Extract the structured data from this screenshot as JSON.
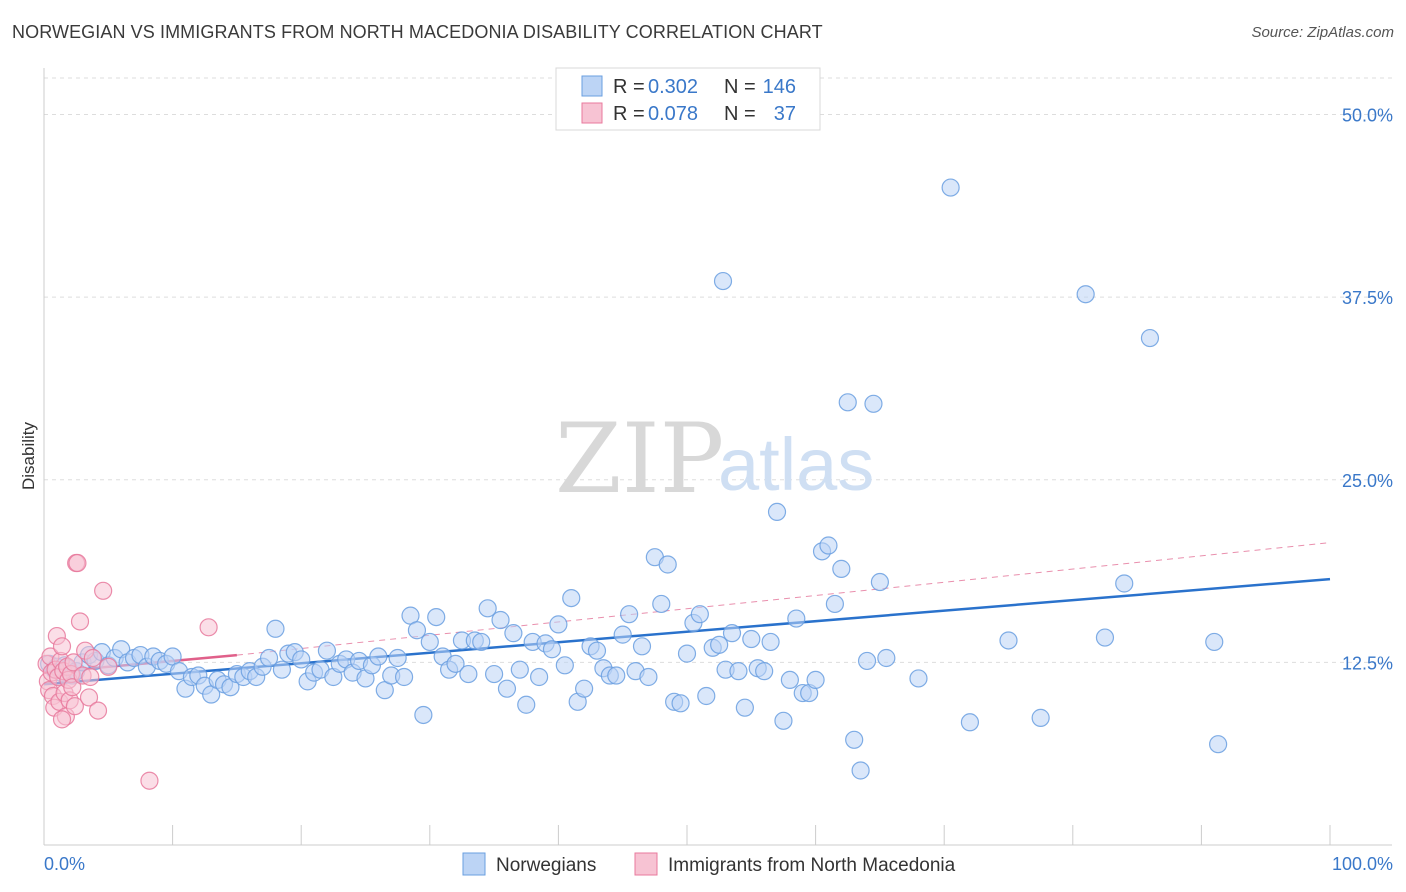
{
  "title": "NORWEGIAN VS IMMIGRANTS FROM NORTH MACEDONIA DISABILITY CORRELATION CHART",
  "source": "Source: ZipAtlas.com",
  "watermark": {
    "zip": "ZIP",
    "atlas": "atlas"
  },
  "chart_data": {
    "type": "scatter",
    "title": "NORWEGIAN VS IMMIGRANTS FROM NORTH MACEDONIA DISABILITY CORRELATION CHART",
    "xlabel": "",
    "ylabel": "Disability",
    "xlim": [
      0,
      100
    ],
    "ylim": [
      0,
      52.5
    ],
    "x_tick_labels": {
      "min": "0.0%",
      "max": "100.0%"
    },
    "y_ticks": [
      {
        "value": 12.5,
        "label": "12.5%"
      },
      {
        "value": 25.0,
        "label": "25.0%"
      },
      {
        "value": 37.5,
        "label": "37.5%"
      },
      {
        "value": 50.0,
        "label": "50.0%"
      }
    ],
    "legend": [
      {
        "r_label": "R =",
        "r_value": "0.302",
        "n_label": "N =",
        "n_value": "146"
      },
      {
        "r_label": "R =",
        "r_value": "0.078",
        "n_label": "N =",
        "n_value": "37"
      }
    ],
    "colors": {
      "blue": "#6a9fe0",
      "blue_fill": "#bcd4f5",
      "blue_line": "#2a72cc",
      "pink": "#e8799c",
      "pink_fill": "#f7c3d3",
      "pink_line": "#e0608a"
    },
    "series": [
      {
        "name": "Norwegians",
        "r": 0.302,
        "n": 146,
        "trend": {
          "x": [
            0,
            100
          ],
          "y": [
            11.0,
            18.2
          ]
        },
        "points": [
          [
            0.4,
            12.4
          ],
          [
            0.8,
            12.0
          ],
          [
            1.0,
            12.2
          ],
          [
            1.3,
            11.8
          ],
          [
            1.6,
            12.3
          ],
          [
            1.9,
            12.1
          ],
          [
            2.2,
            11.6
          ],
          [
            2.5,
            11.9
          ],
          [
            3.0,
            12.5
          ],
          [
            3.5,
            13.0
          ],
          [
            4.0,
            12.6
          ],
          [
            4.5,
            13.2
          ],
          [
            5.0,
            12.3
          ],
          [
            5.5,
            12.8
          ],
          [
            6.0,
            13.4
          ],
          [
            6.5,
            12.5
          ],
          [
            7.0,
            12.8
          ],
          [
            7.5,
            13.0
          ],
          [
            8.0,
            12.2
          ],
          [
            8.5,
            12.9
          ],
          [
            9.0,
            12.6
          ],
          [
            9.5,
            12.4
          ],
          [
            10.0,
            12.9
          ],
          [
            10.5,
            11.9
          ],
          [
            11.0,
            10.7
          ],
          [
            11.5,
            11.5
          ],
          [
            12.0,
            11.6
          ],
          [
            12.5,
            10.9
          ],
          [
            13.0,
            10.3
          ],
          [
            13.5,
            11.3
          ],
          [
            14.0,
            11.0
          ],
          [
            14.5,
            10.8
          ],
          [
            15.0,
            11.7
          ],
          [
            15.5,
            11.5
          ],
          [
            16.0,
            11.9
          ],
          [
            16.5,
            11.5
          ],
          [
            17.0,
            12.2
          ],
          [
            17.5,
            12.8
          ],
          [
            18.0,
            14.8
          ],
          [
            18.5,
            12.0
          ],
          [
            19.0,
            13.1
          ],
          [
            19.5,
            13.2
          ],
          [
            20.0,
            12.7
          ],
          [
            20.5,
            11.2
          ],
          [
            21.0,
            11.8
          ],
          [
            21.5,
            12.0
          ],
          [
            22.0,
            13.3
          ],
          [
            22.5,
            11.5
          ],
          [
            23.0,
            12.4
          ],
          [
            23.5,
            12.7
          ],
          [
            24.0,
            11.8
          ],
          [
            24.5,
            12.6
          ],
          [
            25.0,
            11.4
          ],
          [
            25.5,
            12.3
          ],
          [
            26.0,
            12.9
          ],
          [
            26.5,
            10.6
          ],
          [
            27.0,
            11.6
          ],
          [
            27.5,
            12.8
          ],
          [
            28.0,
            11.5
          ],
          [
            28.5,
            15.7
          ],
          [
            29.0,
            14.7
          ],
          [
            29.5,
            8.9
          ],
          [
            30.0,
            13.9
          ],
          [
            30.5,
            15.6
          ],
          [
            31.0,
            12.9
          ],
          [
            31.5,
            12.0
          ],
          [
            32.0,
            12.4
          ],
          [
            32.5,
            14.0
          ],
          [
            33.0,
            11.7
          ],
          [
            33.5,
            14.0
          ],
          [
            34.0,
            13.9
          ],
          [
            34.5,
            16.2
          ],
          [
            35.0,
            11.7
          ],
          [
            35.5,
            15.4
          ],
          [
            36.0,
            10.7
          ],
          [
            36.5,
            14.5
          ],
          [
            37.0,
            12.0
          ],
          [
            37.5,
            9.6
          ],
          [
            38.0,
            13.9
          ],
          [
            38.5,
            11.5
          ],
          [
            39.0,
            13.8
          ],
          [
            39.5,
            13.4
          ],
          [
            40.0,
            15.1
          ],
          [
            40.5,
            12.3
          ],
          [
            41.0,
            16.9
          ],
          [
            41.5,
            9.8
          ],
          [
            42.0,
            10.7
          ],
          [
            42.5,
            13.6
          ],
          [
            43.0,
            13.3
          ],
          [
            43.5,
            12.1
          ],
          [
            44.0,
            11.6
          ],
          [
            44.5,
            11.6
          ],
          [
            45.0,
            14.4
          ],
          [
            45.5,
            15.8
          ],
          [
            46.0,
            11.9
          ],
          [
            46.5,
            13.6
          ],
          [
            47.0,
            11.5
          ],
          [
            47.5,
            19.7
          ],
          [
            48.0,
            16.5
          ],
          [
            48.5,
            19.2
          ],
          [
            49.0,
            9.8
          ],
          [
            49.5,
            9.7
          ],
          [
            50.0,
            13.1
          ],
          [
            50.5,
            15.2
          ],
          [
            51.0,
            15.8
          ],
          [
            51.5,
            10.2
          ],
          [
            52.0,
            13.5
          ],
          [
            52.5,
            13.7
          ],
          [
            53.0,
            12.0
          ],
          [
            53.5,
            14.5
          ],
          [
            54.0,
            11.9
          ],
          [
            54.5,
            9.4
          ],
          [
            55.0,
            14.1
          ],
          [
            55.5,
            12.1
          ],
          [
            56.0,
            11.9
          ],
          [
            56.5,
            13.9
          ],
          [
            57.0,
            22.8
          ],
          [
            57.5,
            8.5
          ],
          [
            58.0,
            11.3
          ],
          [
            58.5,
            15.5
          ],
          [
            59.0,
            10.4
          ],
          [
            59.5,
            10.4
          ],
          [
            60.0,
            11.3
          ],
          [
            60.5,
            20.1
          ],
          [
            61.0,
            20.5
          ],
          [
            61.5,
            16.5
          ],
          [
            62.0,
            18.9
          ],
          [
            62.5,
            30.3
          ],
          [
            63.0,
            7.2
          ],
          [
            63.5,
            5.1
          ],
          [
            64.0,
            12.6
          ],
          [
            64.5,
            30.2
          ],
          [
            65.0,
            18.0
          ],
          [
            65.5,
            12.8
          ],
          [
            68.0,
            11.4
          ],
          [
            70.5,
            45.0
          ],
          [
            72.0,
            8.4
          ],
          [
            75.0,
            14.0
          ],
          [
            77.5,
            8.7
          ],
          [
            81.0,
            37.7
          ],
          [
            82.5,
            14.2
          ],
          [
            84.0,
            17.9
          ],
          [
            86.0,
            34.7
          ],
          [
            91.0,
            13.9
          ],
          [
            52.8,
            38.6
          ],
          [
            91.3,
            6.9
          ]
        ]
      },
      {
        "name": "Immigrants from North Macedonia",
        "r": 0.078,
        "n": 37,
        "trend": {
          "x": [
            0,
            15
          ],
          "y": [
            11.8,
            13.0
          ]
        },
        "trend_ext": {
          "x": [
            15,
            100
          ],
          "y": [
            13.0,
            20.7
          ]
        },
        "points": [
          [
            0.2,
            12.4
          ],
          [
            0.3,
            11.2
          ],
          [
            0.4,
            10.6
          ],
          [
            0.5,
            12.9
          ],
          [
            0.6,
            11.8
          ],
          [
            0.7,
            10.2
          ],
          [
            0.8,
            9.4
          ],
          [
            0.9,
            12.0
          ],
          [
            1.0,
            14.3
          ],
          [
            1.1,
            11.5
          ],
          [
            1.2,
            9.8
          ],
          [
            1.3,
            12.6
          ],
          [
            1.4,
            13.6
          ],
          [
            1.5,
            11.9
          ],
          [
            1.6,
            10.4
          ],
          [
            1.7,
            8.8
          ],
          [
            1.8,
            12.2
          ],
          [
            1.9,
            11.3
          ],
          [
            2.0,
            9.9
          ],
          [
            2.1,
            11.7
          ],
          [
            2.2,
            10.8
          ],
          [
            2.3,
            12.5
          ],
          [
            2.4,
            9.5
          ],
          [
            2.5,
            19.3
          ],
          [
            2.6,
            19.3
          ],
          [
            2.8,
            15.3
          ],
          [
            3.0,
            11.6
          ],
          [
            3.2,
            13.3
          ],
          [
            3.5,
            10.1
          ],
          [
            3.8,
            12.8
          ],
          [
            4.2,
            9.2
          ],
          [
            4.6,
            17.4
          ],
          [
            5.0,
            12.2
          ],
          [
            3.6,
            11.5
          ],
          [
            8.2,
            4.4
          ],
          [
            12.8,
            14.9
          ],
          [
            1.4,
            8.6
          ]
        ]
      }
    ]
  },
  "bottom_legend": [
    {
      "label": "Norwegians"
    },
    {
      "label": "Immigrants from North Macedonia"
    }
  ]
}
